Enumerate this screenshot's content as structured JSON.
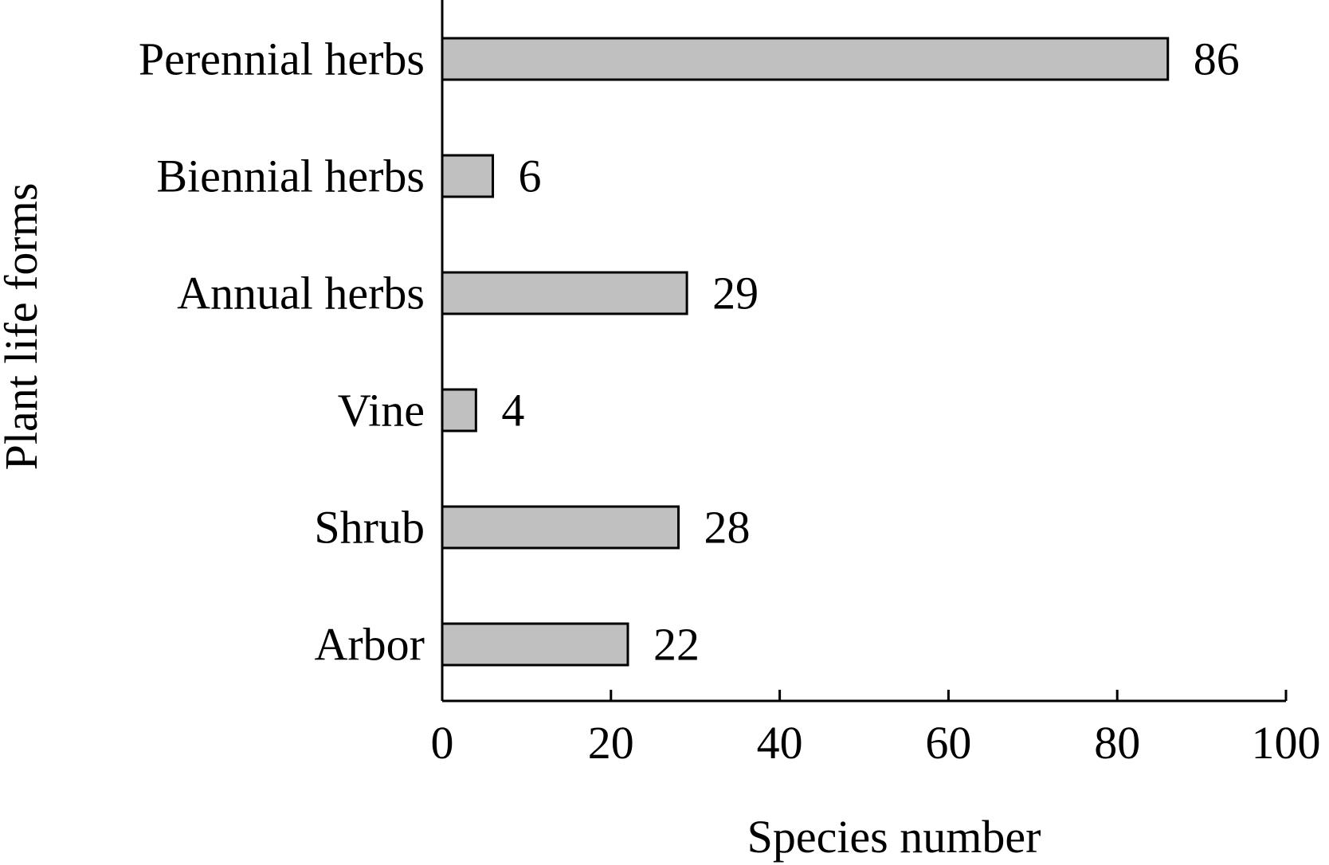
{
  "chart_data": {
    "type": "bar",
    "orientation": "horizontal",
    "categories": [
      "Perennial herbs",
      "Biennial herbs",
      "Annual herbs",
      "Vine",
      "Shrub",
      "Arbor"
    ],
    "values": [
      86,
      6,
      29,
      4,
      28,
      22
    ],
    "value_labels": [
      "86",
      "6",
      "29",
      "4",
      "28",
      "22"
    ],
    "xlabel": "Species number",
    "ylabel": "Plant life forms",
    "xlim": [
      0,
      100
    ],
    "x_ticks": [
      0,
      20,
      40,
      60,
      80,
      100
    ],
    "x_tick_labels": [
      "0",
      "20",
      "40",
      "60",
      "80",
      "100"
    ],
    "grid": false,
    "legend": "none",
    "bar_color": "#c0c0c0",
    "bar_edge_color": "#000000"
  }
}
